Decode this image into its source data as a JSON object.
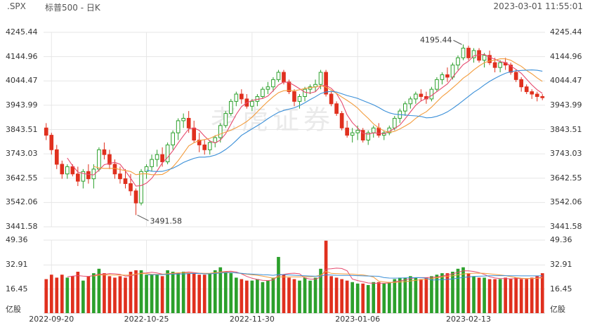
{
  "header": {
    "symbol": ".SPX",
    "title": "标普500 - 日K",
    "datetime": "2023-03-01 11:55:01"
  },
  "watermark": "老虎证券",
  "colors": {
    "up": "#2ca02c",
    "down": "#e0301e",
    "ma5": "#e64a6e",
    "ma10": "#f39c3c",
    "ma20": "#3a8fd8",
    "grid": "#e6e6e6"
  },
  "price_axis": {
    "ticks": [
      "4245.44",
      "4144.96",
      "4044.47",
      "3943.99",
      "3843.51",
      "3743.03",
      "3642.55",
      "3542.06",
      "3441.58"
    ]
  },
  "volume_axis": {
    "ticks": [
      "49.36",
      "32.91",
      "16.45"
    ],
    "unit": "亿股"
  },
  "date_axis": {
    "labels": [
      "2022-09-20",
      "2022-10-25",
      "2022-11-30",
      "2023-01-06",
      "2023-02-13"
    ]
  },
  "annotations": {
    "high": "4195.44",
    "low": "3491.58"
  },
  "chart_data": {
    "type": "candlestick",
    "title": "标普500 - 日K",
    "ylim": [
      3441.58,
      4245.44
    ],
    "volume_ylim": [
      0,
      49.36
    ],
    "x_labels": [
      "2022-09-20",
      "2022-10-25",
      "2022-11-30",
      "2023-01-06",
      "2023-02-13"
    ],
    "ma_periods": [
      5,
      10,
      20
    ],
    "high_label": 4195.44,
    "low_label": 3491.58,
    "candles": [
      [
        3850,
        3870,
        3800,
        3820,
        23
      ],
      [
        3820,
        3830,
        3740,
        3760,
        26
      ],
      [
        3760,
        3780,
        3680,
        3700,
        24
      ],
      [
        3700,
        3715,
        3640,
        3660,
        26
      ],
      [
        3660,
        3700,
        3640,
        3690,
        24
      ],
      [
        3690,
        3700,
        3650,
        3660,
        25
      ],
      [
        3660,
        3690,
        3610,
        3630,
        28
      ],
      [
        3630,
        3680,
        3600,
        3670,
        22
      ],
      [
        3670,
        3700,
        3620,
        3640,
        25
      ],
      [
        3640,
        3700,
        3600,
        3680,
        27
      ],
      [
        3680,
        3770,
        3670,
        3760,
        30
      ],
      [
        3760,
        3790,
        3720,
        3740,
        27
      ],
      [
        3740,
        3760,
        3680,
        3700,
        25
      ],
      [
        3700,
        3720,
        3640,
        3660,
        24
      ],
      [
        3660,
        3690,
        3620,
        3640,
        25
      ],
      [
        3640,
        3680,
        3600,
        3620,
        24
      ],
      [
        3620,
        3660,
        3570,
        3590,
        28
      ],
      [
        3590,
        3600,
        3490,
        3540,
        29
      ],
      [
        3540,
        3680,
        3530,
        3670,
        29
      ],
      [
        3670,
        3700,
        3640,
        3690,
        26
      ],
      [
        3690,
        3740,
        3670,
        3720,
        26
      ],
      [
        3720,
        3760,
        3690,
        3740,
        26
      ],
      [
        3740,
        3770,
        3690,
        3710,
        25
      ],
      [
        3710,
        3790,
        3700,
        3780,
        29
      ],
      [
        3780,
        3840,
        3760,
        3830,
        28
      ],
      [
        3830,
        3890,
        3800,
        3880,
        27
      ],
      [
        3880,
        3910,
        3850,
        3890,
        28
      ],
      [
        3890,
        3920,
        3830,
        3850,
        27
      ],
      [
        3850,
        3880,
        3790,
        3800,
        27
      ],
      [
        3800,
        3830,
        3750,
        3780,
        26
      ],
      [
        3780,
        3800,
        3740,
        3760,
        26
      ],
      [
        3760,
        3800,
        3740,
        3790,
        27
      ],
      [
        3790,
        3820,
        3770,
        3810,
        29
      ],
      [
        3810,
        3870,
        3790,
        3860,
        31
      ],
      [
        3860,
        3920,
        3850,
        3910,
        28
      ],
      [
        3910,
        3970,
        3900,
        3960,
        27
      ],
      [
        3960,
        4000,
        3940,
        3990,
        24
      ],
      [
        3990,
        4010,
        3950,
        3970,
        23
      ],
      [
        3970,
        3990,
        3930,
        3940,
        22
      ],
      [
        3940,
        3970,
        3920,
        3960,
        22
      ],
      [
        3960,
        3990,
        3940,
        3980,
        23
      ],
      [
        3980,
        4020,
        3970,
        4010,
        21
      ],
      [
        4010,
        4040,
        3990,
        4020,
        22
      ],
      [
        4020,
        4060,
        4000,
        4050,
        24
      ],
      [
        4050,
        4090,
        4040,
        4080,
        38
      ],
      [
        4080,
        4090,
        4030,
        4040,
        26
      ],
      [
        4040,
        4050,
        3990,
        4000,
        24
      ],
      [
        4000,
        4010,
        3940,
        3960,
        23
      ],
      [
        3960,
        3990,
        3930,
        3980,
        22
      ],
      [
        3980,
        4020,
        3960,
        4010,
        24
      ],
      [
        4010,
        4030,
        3990,
        4020,
        22
      ],
      [
        4020,
        4050,
        4000,
        4030,
        24
      ],
      [
        4030,
        4090,
        4010,
        4080,
        30
      ],
      [
        4080,
        4090,
        3980,
        3990,
        49
      ],
      [
        3990,
        4000,
        3940,
        3950,
        25
      ],
      [
        3950,
        3960,
        3900,
        3910,
        24
      ],
      [
        3910,
        3920,
        3840,
        3850,
        23
      ],
      [
        3850,
        3880,
        3810,
        3820,
        22
      ],
      [
        3820,
        3850,
        3790,
        3830,
        21
      ],
      [
        3830,
        3860,
        3800,
        3840,
        20
      ],
      [
        3840,
        3850,
        3790,
        3800,
        20
      ],
      [
        3800,
        3840,
        3780,
        3830,
        19
      ],
      [
        3830,
        3860,
        3810,
        3850,
        21
      ],
      [
        3850,
        3870,
        3810,
        3820,
        21
      ],
      [
        3820,
        3840,
        3800,
        3830,
        20
      ],
      [
        3830,
        3860,
        3820,
        3850,
        21
      ],
      [
        3850,
        3900,
        3840,
        3890,
        23
      ],
      [
        3890,
        3930,
        3870,
        3920,
        24
      ],
      [
        3920,
        3960,
        3900,
        3950,
        24
      ],
      [
        3950,
        3980,
        3930,
        3970,
        25
      ],
      [
        3970,
        4000,
        3950,
        3990,
        24
      ],
      [
        3990,
        4010,
        3960,
        3980,
        23
      ],
      [
        3980,
        4000,
        3950,
        3970,
        24
      ],
      [
        3970,
        4020,
        3960,
        4010,
        25
      ],
      [
        4010,
        4060,
        4000,
        4050,
        26
      ],
      [
        4050,
        4080,
        4030,
        4070,
        27
      ],
      [
        4070,
        4100,
        4040,
        4060,
        27
      ],
      [
        4060,
        4120,
        4050,
        4110,
        28
      ],
      [
        4110,
        4150,
        4090,
        4140,
        30
      ],
      [
        4140,
        4195,
        4130,
        4180,
        31
      ],
      [
        4180,
        4190,
        4130,
        4140,
        27
      ],
      [
        4140,
        4180,
        4120,
        4170,
        25
      ],
      [
        4170,
        4180,
        4120,
        4130,
        24
      ],
      [
        4130,
        4160,
        4100,
        4150,
        24
      ],
      [
        4150,
        4170,
        4110,
        4120,
        23
      ],
      [
        4120,
        4140,
        4080,
        4100,
        23
      ],
      [
        4100,
        4130,
        4080,
        4120,
        23
      ],
      [
        4120,
        4140,
        4090,
        4110,
        24
      ],
      [
        4110,
        4120,
        4070,
        4080,
        23
      ],
      [
        4080,
        4090,
        4040,
        4050,
        24
      ],
      [
        4050,
        4060,
        4000,
        4020,
        23
      ],
      [
        4020,
        4030,
        3990,
        4000,
        23
      ],
      [
        4000,
        4010,
        3970,
        3990,
        24
      ],
      [
        3990,
        4000,
        3960,
        3980,
        25
      ],
      [
        3980,
        3990,
        3965,
        3975,
        27
      ]
    ]
  }
}
